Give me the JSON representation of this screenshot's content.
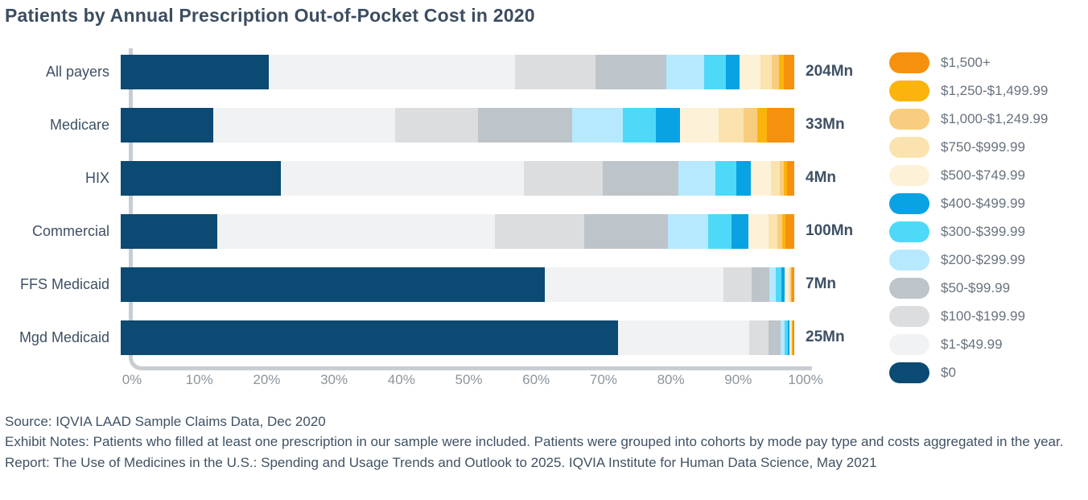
{
  "chart_data": {
    "type": "bar",
    "stacked": true,
    "orientation": "horizontal",
    "title": "Patients by Annual Prescription Out-of-Pocket Cost in 2020",
    "categories": [
      "All payers",
      "Medicare",
      "HIX",
      "Commercial",
      "FFS Medicaid",
      "Mgd Medicaid"
    ],
    "totals": [
      "204Mn",
      "33Mn",
      "4Mn",
      "100Mn",
      "7Mn",
      "25Mn"
    ],
    "x_axis": {
      "min": 0,
      "max": 100,
      "unit": "%",
      "ticks": [
        "0%",
        "10%",
        "20%",
        "30%",
        "40%",
        "50%",
        "60%",
        "70%",
        "80%",
        "90%",
        "100%"
      ]
    },
    "grid": false,
    "legend_position": "right",
    "series": [
      {
        "name": "$0",
        "color": "#0B4A72",
        "values": [
          22.0,
          13.7,
          23.8,
          14.3,
          63.0,
          73.8
        ]
      },
      {
        "name": "$1-$49.99",
        "color": "#F1F2F3",
        "values": [
          36.5,
          27.0,
          36.0,
          41.2,
          26.5,
          19.5
        ]
      },
      {
        "name": "$100-$199.99",
        "color": "#DBDDDE",
        "values": [
          12.0,
          12.3,
          11.8,
          13.3,
          4.2,
          2.9
        ]
      },
      {
        "name": "$50-$99.99",
        "color": "#BDC4CA",
        "values": [
          10.5,
          14.0,
          11.2,
          12.4,
          2.6,
          1.8
        ]
      },
      {
        "name": "$200-$299.99",
        "color": "#B6E9FD",
        "values": [
          5.6,
          7.5,
          5.5,
          6.0,
          1.0,
          0.6
        ]
      },
      {
        "name": "$300-$399.99",
        "color": "#4ED9F8",
        "values": [
          3.3,
          4.9,
          3.1,
          3.5,
          0.8,
          0.45
        ]
      },
      {
        "name": "$400-$499.99",
        "color": "#09A3E3",
        "values": [
          2.0,
          3.7,
          2.2,
          2.5,
          0.5,
          0.25
        ]
      },
      {
        "name": "$500-$749.99",
        "color": "#FDF2D8",
        "values": [
          3.1,
          5.7,
          2.9,
          3.0,
          0.6,
          0.2
        ]
      },
      {
        "name": "$750-$999.99",
        "color": "#FBE3AF",
        "values": [
          1.7,
          3.7,
          1.4,
          1.3,
          0.2,
          0.1
        ]
      },
      {
        "name": "$1,000-$1,249.99",
        "color": "#F9CD7F",
        "values": [
          1.0,
          2.0,
          0.6,
          0.7,
          0.1,
          0.1
        ]
      },
      {
        "name": "$1,250-$1,499.99",
        "color": "#FBB40D",
        "values": [
          0.8,
          1.4,
          0.4,
          0.5,
          0.2,
          0.1
        ]
      },
      {
        "name": "$1,500+",
        "color": "#F6910D",
        "values": [
          1.5,
          4.1,
          1.1,
          1.3,
          0.3,
          0.2
        ]
      }
    ]
  },
  "legend": {
    "items": [
      {
        "label": "$1,500+",
        "color": "#F6910D"
      },
      {
        "label": "$1,250-$1,499.99",
        "color": "#FBB40D"
      },
      {
        "label": "$1,000-$1,249.99",
        "color": "#F9CD7F"
      },
      {
        "label": "$750-$999.99",
        "color": "#FBE3AF"
      },
      {
        "label": "$500-$749.99",
        "color": "#FDF2D8"
      },
      {
        "label": "$400-$499.99",
        "color": "#09A3E3"
      },
      {
        "label": "$300-$399.99",
        "color": "#4ED9F8"
      },
      {
        "label": "$200-$299.99",
        "color": "#B6E9FD"
      },
      {
        "label": "$50-$99.99",
        "color": "#BDC4CA"
      },
      {
        "label": "$100-$199.99",
        "color": "#DBDDDE"
      },
      {
        "label": "$1-$49.99",
        "color": "#F1F2F3"
      },
      {
        "label": "$0",
        "color": "#0B4A72"
      }
    ]
  },
  "colors": {
    "title_text": "#3C4D61",
    "row_label_text": "#3E5064",
    "total_text": "#3E5064",
    "tick_text": "#8C959C",
    "legend_text": "#68727E",
    "axis_line": "#C8CDD2",
    "footer_text": "#405264"
  },
  "footer": {
    "lines": [
      "Source: IQVIA LAAD Sample Claims Data, Dec 2020",
      "Exhibit Notes: Patients who filled at least one prescription in our sample were included. Patients were grouped into cohorts by mode pay type and costs aggregated in the year.",
      "Report: The Use of Medicines in the U.S.: Spending and Usage Trends and Outlook to 2025. IQVIA Institute for Human Data Science, May 2021"
    ]
  }
}
